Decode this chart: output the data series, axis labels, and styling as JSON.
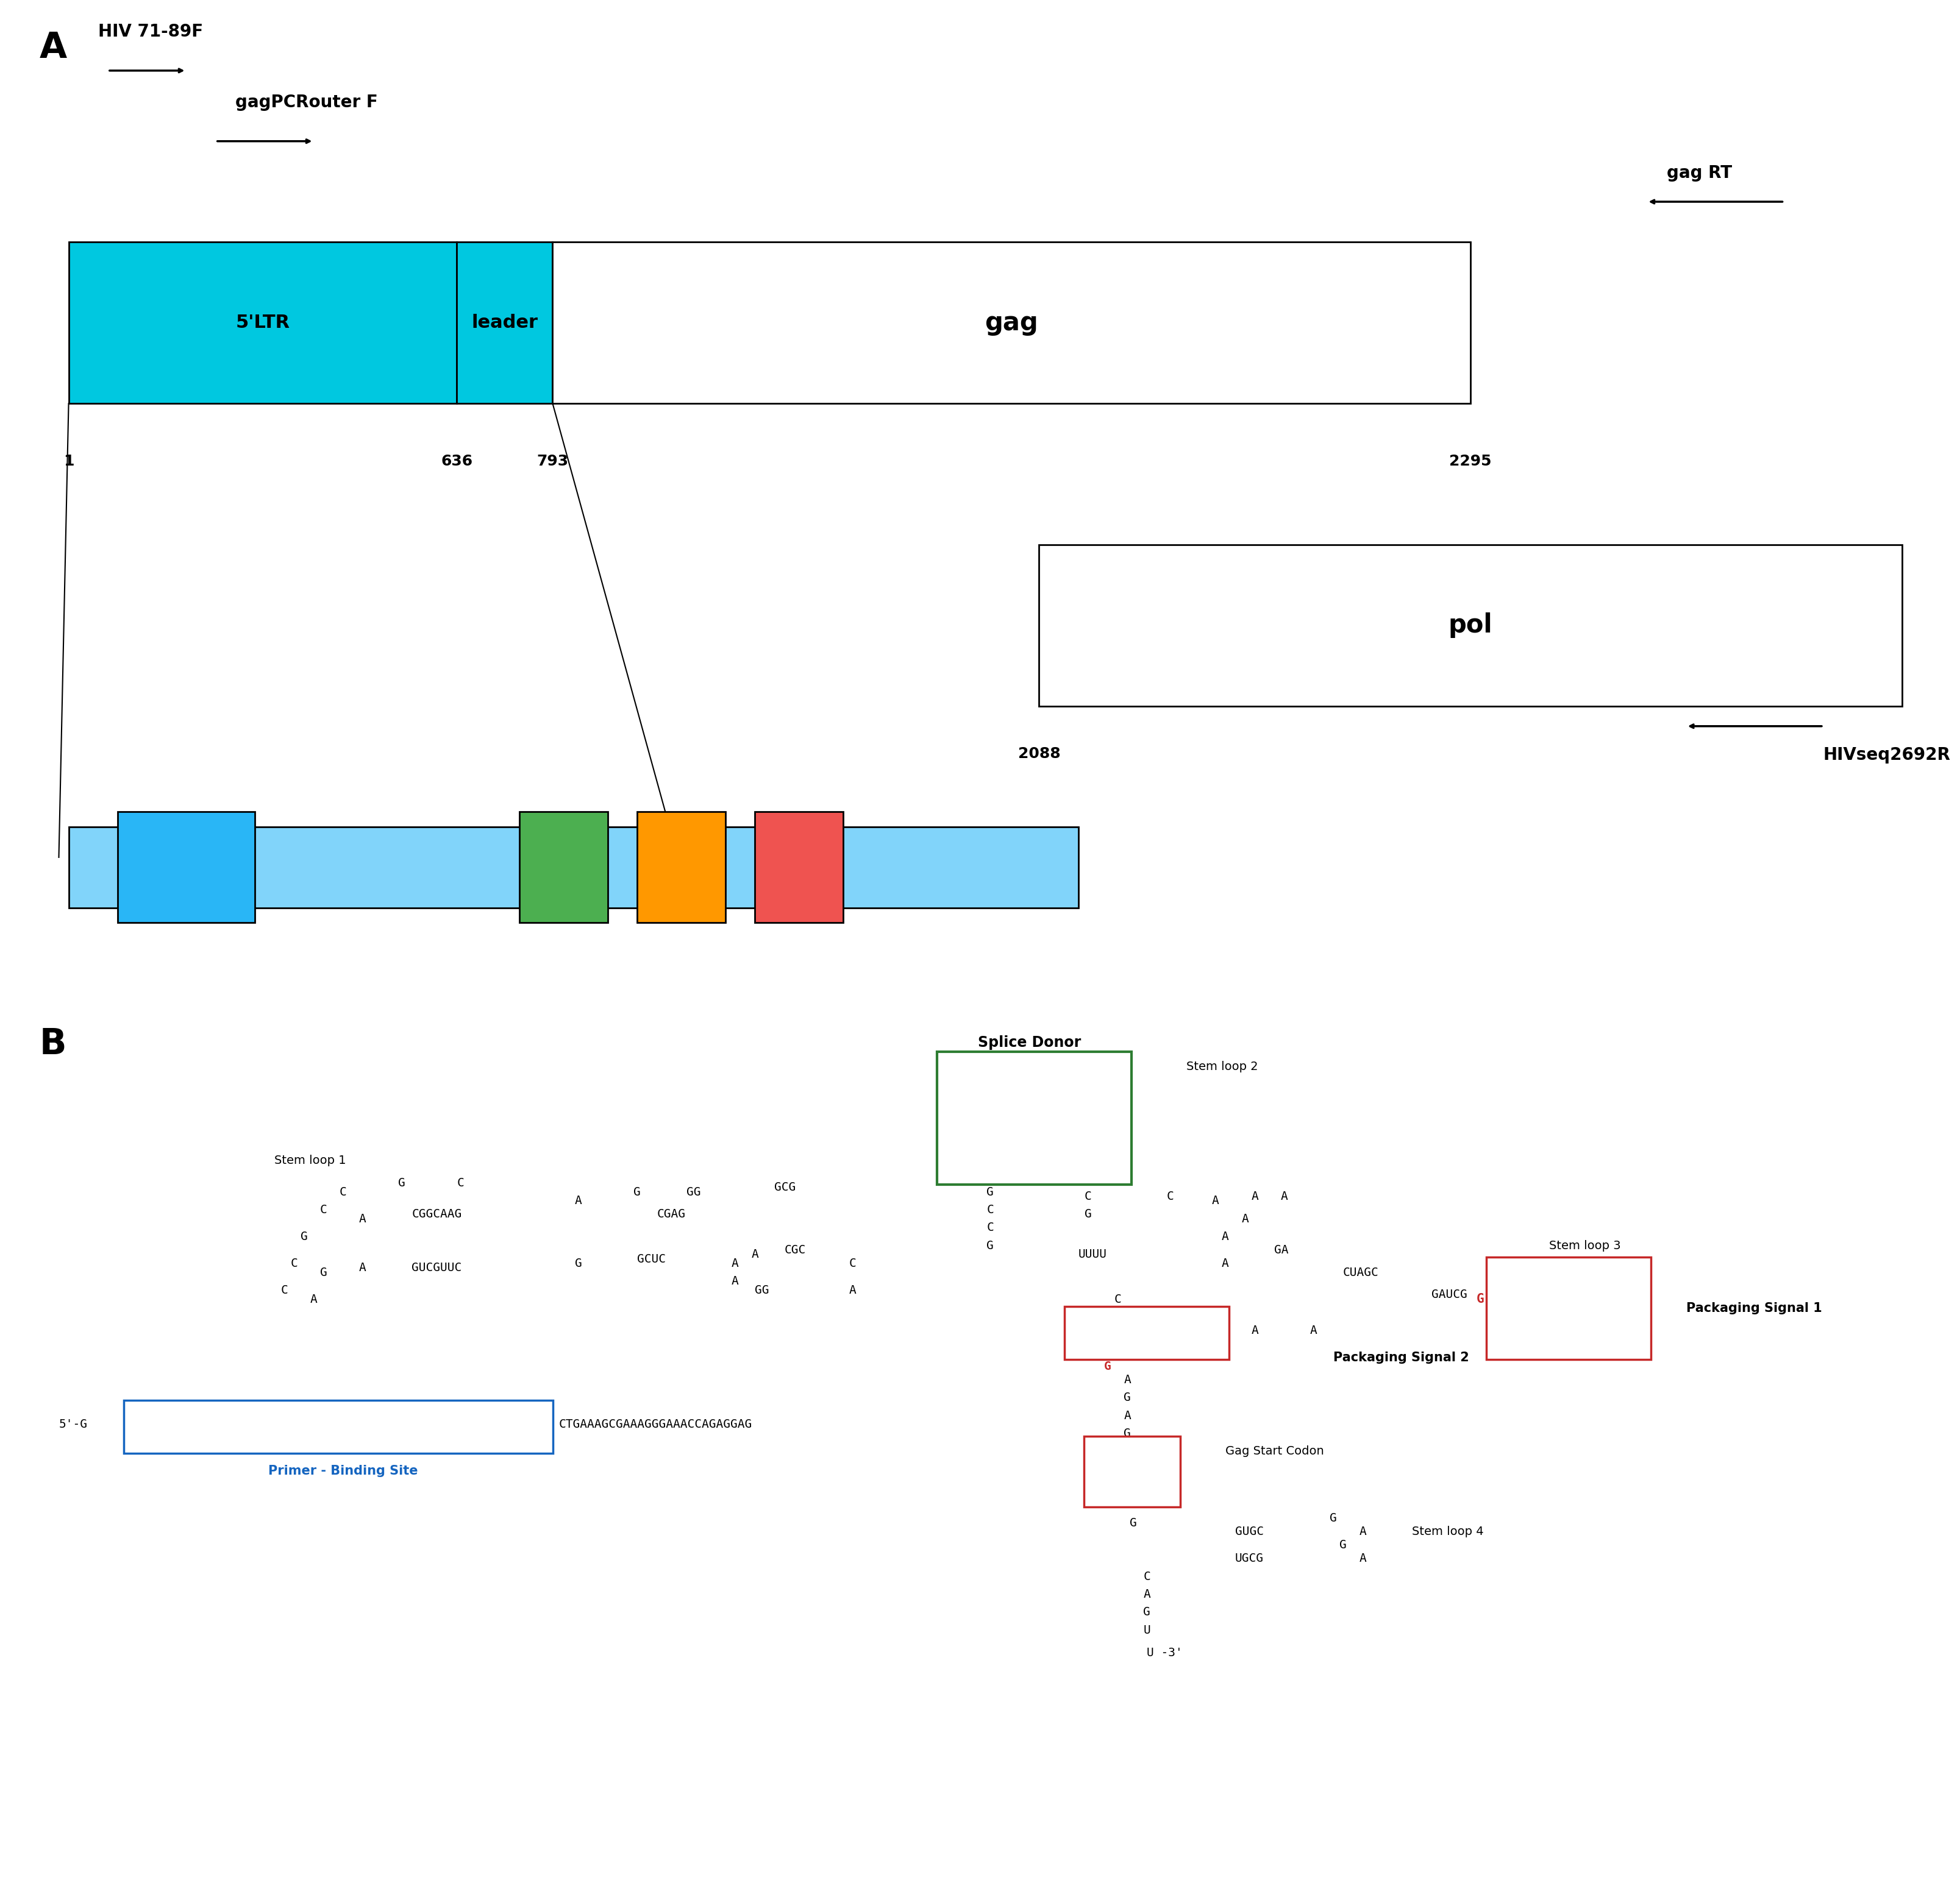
{
  "bg_color": "#ffffff",
  "panel_A": {
    "ltr_color": "#00c8e0",
    "leader_color": "#00c8e0",
    "gag_color": "#ffffff",
    "pol_color": "#ffffff",
    "ltr_label": "5'LTR",
    "leader_label": "leader",
    "gag_label": "gag",
    "pol_label": "pol",
    "leader_bar": {
      "pbs_color": "#29b6f6",
      "sd1_color": "#4caf50",
      "ps1_color": "#ff9800",
      "ps2_color": "#ef5350",
      "bar_color": "#81d4fa"
    }
  },
  "panel_B": {
    "splice_donor_box_color": "#2e7d32",
    "ps1_box_color": "#c62828",
    "ps2_box_color": "#c62828",
    "aug_box_color": "#c62828",
    "pbs_box_color": "#1565c0",
    "splice_donor_text": "Splice Donor",
    "stem_loop_1": "Stem loop 1",
    "stem_loop_2": "Stem loop 2",
    "stem_loop_3": "Stem loop 3",
    "stem_loop_4": "Stem loop 4",
    "packaging_signal_1": "Packaging Signal 1",
    "packaging_signal_2": "Packaging Signal 2",
    "gag_start": "Gag Start Codon",
    "primer_binding_site": "Primer - Binding Site"
  }
}
